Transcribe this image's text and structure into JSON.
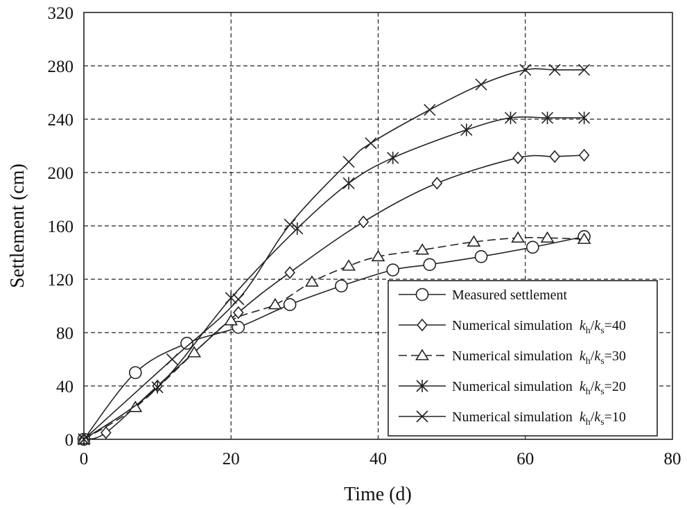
{
  "chart_data": {
    "type": "line",
    "title": "",
    "xlabel": "Time (d)",
    "ylabel": "Settlement (cm)",
    "xlim": [
      0,
      80
    ],
    "ylim": [
      0,
      320
    ],
    "xticks": [
      0,
      20,
      40,
      60,
      80
    ],
    "yticks": [
      0,
      40,
      80,
      120,
      160,
      200,
      240,
      280,
      320
    ],
    "grid": true,
    "legend_position": "bottom-right",
    "series": [
      {
        "id": "measured",
        "name": "Measured settlement",
        "ratio": "",
        "marker": "circle",
        "line": "solid-bold",
        "x": [
          0,
          7,
          14,
          21,
          28,
          35,
          42,
          47,
          54,
          61,
          68
        ],
        "y": [
          0,
          50,
          72,
          84,
          101,
          115,
          127,
          131,
          137,
          144,
          152
        ]
      },
      {
        "id": "ratio40",
        "name": "Numerical simulation",
        "ratio": "40",
        "marker": "diamond",
        "line": "solid",
        "x": [
          0,
          3,
          10,
          21,
          28,
          38,
          48,
          59,
          64,
          68
        ],
        "y": [
          0,
          5,
          40,
          95,
          125,
          163,
          192,
          211,
          212,
          213
        ]
      },
      {
        "id": "ratio30",
        "name": "Numerical simulation",
        "ratio": "30",
        "marker": "triangle",
        "line": "dashed",
        "x": [
          0,
          7,
          15,
          20,
          26,
          31,
          36,
          40,
          46,
          53,
          59,
          63,
          68
        ],
        "y": [
          0,
          24,
          65,
          89,
          101,
          118,
          130,
          137,
          142,
          148,
          151,
          151,
          150
        ]
      },
      {
        "id": "ratio20",
        "name": "Numerical simulation",
        "ratio": "20",
        "marker": "asterisk",
        "line": "solid",
        "x": [
          0,
          10,
          20,
          29,
          36,
          42,
          52,
          58,
          63,
          68
        ],
        "y": [
          0,
          39,
          106,
          158,
          192,
          211,
          232,
          241,
          241,
          241
        ]
      },
      {
        "id": "ratio10",
        "name": "Numerical simulation",
        "ratio": "10",
        "marker": "cross",
        "line": "solid",
        "x": [
          0,
          12,
          21,
          28,
          36,
          39,
          47,
          54,
          60,
          64,
          68
        ],
        "y": [
          0,
          60,
          105,
          161,
          208,
          222,
          247,
          266,
          277,
          277,
          277
        ]
      }
    ]
  },
  "legend": {
    "ratio_k": "k",
    "ratio_sub_h": "h",
    "ratio_slash": "/",
    "ratio_sub_s": "s",
    "ratio_eq": "="
  }
}
